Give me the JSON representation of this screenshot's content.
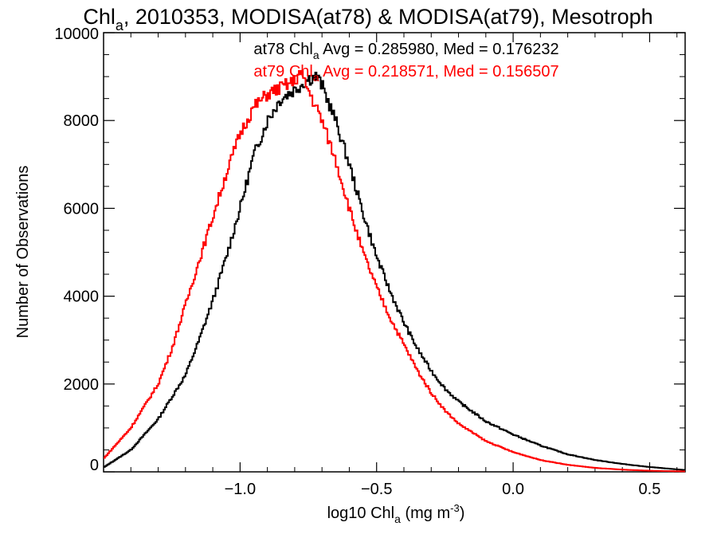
{
  "chart_data": {
    "type": "line",
    "title_main": "Chl",
    "title_sub": "a",
    "title_rest": ", 2010353, MODISA(at78) & MODISA(at79), Mesotroph",
    "xlabel_main": "log10 Chl",
    "xlabel_sub": "a",
    "xlabel_units": " (mg m",
    "xlabel_sup": "-3",
    "xlabel_close": ")",
    "ylabel": "Number of Observations",
    "xlim": [
      -1.5,
      0.63
    ],
    "ylim": [
      0,
      10000
    ],
    "xticks": [
      -1.0,
      -0.5,
      0.0,
      0.5
    ],
    "xtick_labels": [
      "−1.0",
      "−0.5",
      "0.0",
      "0.5"
    ],
    "yticks": [
      0,
      2000,
      4000,
      6000,
      8000,
      10000
    ],
    "ytick_labels": [
      "0",
      "2000",
      "4000",
      "6000",
      "8000",
      "10000"
    ],
    "grid": false,
    "series": [
      {
        "name": "at78",
        "color": "#000000",
        "stat_prefix": "at78 Chl",
        "stat_sub": "a",
        "stat_rest": " Avg = 0.285980, Med = 0.176232",
        "x": [
          -1.5,
          -1.4,
          -1.3,
          -1.2,
          -1.15,
          -1.1,
          -1.05,
          -1.0,
          -0.95,
          -0.9,
          -0.85,
          -0.8,
          -0.75,
          -0.72,
          -0.7,
          -0.65,
          -0.6,
          -0.55,
          -0.5,
          -0.45,
          -0.4,
          -0.35,
          -0.3,
          -0.25,
          -0.2,
          -0.1,
          0.0,
          0.1,
          0.2,
          0.3,
          0.4,
          0.5,
          0.63
        ],
        "y": [
          100,
          500,
          1200,
          2200,
          3000,
          3900,
          4900,
          6000,
          7200,
          8000,
          8500,
          8700,
          8950,
          9000,
          8800,
          8000,
          7000,
          5900,
          4900,
          4100,
          3400,
          2800,
          2300,
          1900,
          1600,
          1150,
          850,
          600,
          400,
          270,
          180,
          110,
          40
        ]
      },
      {
        "name": "at79",
        "color": "#ff0000",
        "stat_prefix": "at79 Chl",
        "stat_sub": "a",
        "stat_rest": " Avg = 0.218571, Med = 0.156507",
        "x": [
          -1.5,
          -1.4,
          -1.3,
          -1.25,
          -1.2,
          -1.15,
          -1.1,
          -1.05,
          -1.0,
          -0.95,
          -0.9,
          -0.85,
          -0.8,
          -0.78,
          -0.75,
          -0.7,
          -0.65,
          -0.6,
          -0.55,
          -0.5,
          -0.45,
          -0.4,
          -0.35,
          -0.3,
          -0.25,
          -0.2,
          -0.1,
          0.0,
          0.1,
          0.2,
          0.3,
          0.4,
          0.5,
          0.63
        ],
        "y": [
          300,
          1000,
          2000,
          2800,
          3800,
          4800,
          5800,
          6800,
          7700,
          8300,
          8600,
          8750,
          8900,
          9100,
          8700,
          8000,
          7100,
          6000,
          5000,
          4200,
          3500,
          2900,
          2300,
          1800,
          1400,
          1100,
          700,
          450,
          270,
          160,
          90,
          50,
          25,
          10
        ]
      }
    ]
  }
}
